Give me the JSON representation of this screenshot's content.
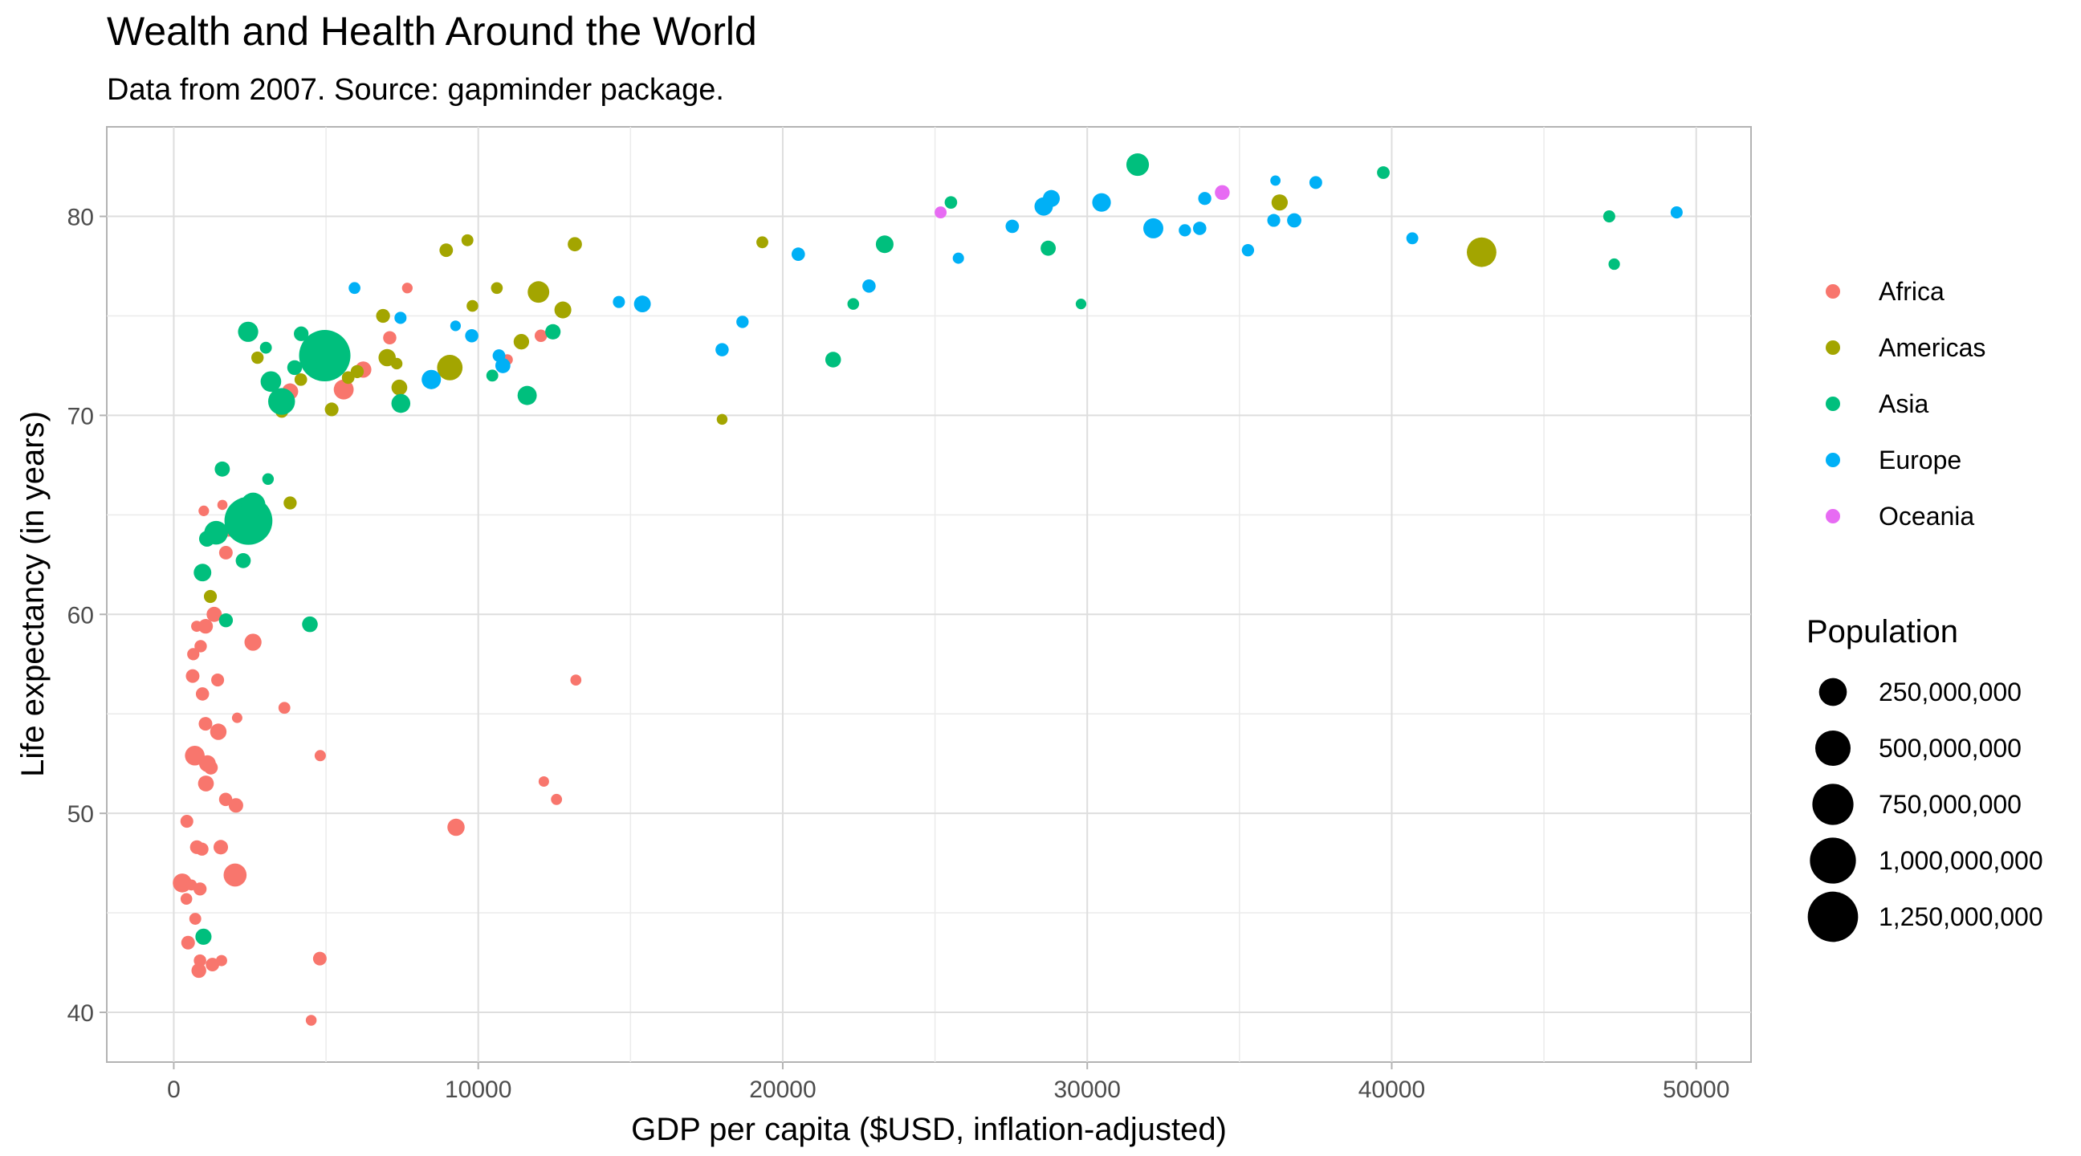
{
  "chart_data": {
    "type": "scatter",
    "title": "Wealth and Health Around the World",
    "subtitle": "Data from 2007. Source: gapminder package.",
    "xlabel": "GDP per capita ($USD, inflation-adjusted)",
    "ylabel": "Life expectancy (in years)",
    "xlim": [
      -2200,
      51800
    ],
    "ylim": [
      37.5,
      84.5
    ],
    "x_ticks": [
      0,
      10000,
      20000,
      30000,
      40000,
      50000
    ],
    "x_tick_labels": [
      "0",
      "10000",
      "20000",
      "30000",
      "40000",
      "50000"
    ],
    "y_ticks": [
      40,
      50,
      60,
      70,
      80
    ],
    "y_tick_labels": [
      "40",
      "50",
      "60",
      "70",
      "80"
    ],
    "grid": true,
    "legend_placement": "right",
    "color_legend": {
      "entries": [
        {
          "label": "Africa",
          "color": "#F8766D"
        },
        {
          "label": "Americas",
          "color": "#A3A500"
        },
        {
          "label": "Asia",
          "color": "#00BF7D"
        },
        {
          "label": "Europe",
          "color": "#00B0F6"
        },
        {
          "label": "Oceania",
          "color": "#E76BF3"
        }
      ]
    },
    "size_legend": {
      "title": "Population",
      "entries": [
        {
          "label": "250,000,000",
          "value": 250000000
        },
        {
          "label": "500,000,000",
          "value": 500000000
        },
        {
          "label": "750,000,000",
          "value": 750000000
        },
        {
          "label": "1,000,000,000",
          "value": 1000000000
        },
        {
          "label": "1,250,000,000",
          "value": 1250000000
        }
      ]
    },
    "series": [
      {
        "name": "Africa",
        "points": [
          [
            6223,
            72.3,
            33
          ],
          [
            4797,
            42.7,
            12
          ],
          [
            1441,
            56.7,
            8
          ],
          [
            12570,
            50.7,
            1.6
          ],
          [
            1217,
            52.3,
            14
          ],
          [
            430,
            49.6,
            8
          ],
          [
            2042,
            50.4,
            18
          ],
          [
            706,
            44.7,
            4
          ],
          [
            1704,
            50.7,
            10
          ],
          [
            986,
            65.2,
            0.7
          ],
          [
            278,
            46.5,
            65
          ],
          [
            3633,
            55.3,
            3.8
          ],
          [
            1544,
            48.3,
            18
          ],
          [
            2082,
            54.8,
            0.5
          ],
          [
            5581,
            71.3,
            80
          ],
          [
            12154,
            51.6,
            0.55
          ],
          [
            641,
            58.0,
            5
          ],
          [
            691,
            52.9,
            77
          ],
          [
            13206,
            56.7,
            1.45
          ],
          [
            753,
            59.4,
            1.7
          ],
          [
            1327,
            60.0,
            23
          ],
          [
            943,
            56.0,
            9.9
          ],
          [
            579,
            46.4,
            1.5
          ],
          [
            1463,
            54.1,
            35
          ],
          [
            1569,
            42.6,
            2
          ],
          [
            415,
            45.7,
            3.2
          ],
          [
            12057,
            74.0,
            6
          ],
          [
            1045,
            59.4,
            19
          ],
          [
            759,
            48.3,
            13
          ],
          [
            1042,
            54.5,
            12
          ],
          [
            1803,
            64.2,
            3.3
          ],
          [
            10957,
            72.8,
            1.25
          ],
          [
            3820,
            71.2,
            33
          ],
          [
            824,
            42.1,
            20
          ],
          [
            4811,
            52.9,
            2
          ],
          [
            620,
            56.9,
            12
          ],
          [
            2014,
            46.9,
            135
          ],
          [
            7670,
            76.4,
            0.8
          ],
          [
            863,
            46.2,
            9
          ],
          [
            1598,
            65.5,
            0.2
          ],
          [
            1712,
            63.1,
            12
          ],
          [
            862,
            42.6,
            6
          ],
          [
            926,
            48.2,
            9
          ],
          [
            9270,
            49.3,
            44
          ],
          [
            2602,
            58.6,
            42
          ],
          [
            4513,
            39.6,
            1.1
          ],
          [
            1107,
            52.5,
            38
          ],
          [
            883,
            58.4,
            5.7
          ],
          [
            7093,
            73.9,
            10
          ],
          [
            1056,
            51.5,
            29
          ],
          [
            1271,
            42.4,
            11.7
          ],
          [
            470,
            43.5,
            12.3
          ]
        ]
      },
      {
        "name": "Americas",
        "points": [
          [
            12779,
            75.3,
            40
          ],
          [
            3822,
            65.6,
            9
          ],
          [
            9066,
            72.4,
            190
          ],
          [
            36319,
            80.7,
            33
          ],
          [
            13172,
            78.6,
            16
          ],
          [
            7007,
            72.9,
            44
          ],
          [
            9645,
            78.8,
            4.1
          ],
          [
            8948,
            78.3,
            11.4
          ],
          [
            6025,
            72.2,
            9.3
          ],
          [
            6873,
            75.0,
            13.8
          ],
          [
            5728,
            71.9,
            6.9
          ],
          [
            5186,
            70.3,
            12.6
          ],
          [
            1202,
            60.9,
            8.5
          ],
          [
            3548,
            70.2,
            7.5
          ],
          [
            7321,
            72.6,
            2.8
          ],
          [
            11978,
            76.2,
            108
          ],
          [
            2749,
            72.9,
            5.7
          ],
          [
            9809,
            75.5,
            3.2
          ],
          [
            4173,
            71.8,
            6.7
          ],
          [
            7409,
            71.4,
            28.7
          ],
          [
            19329,
            78.7,
            4
          ],
          [
            18009,
            69.8,
            1.05
          ],
          [
            42952,
            78.2,
            301
          ],
          [
            10611,
            76.4,
            3.45
          ],
          [
            11416,
            73.7,
            26
          ]
        ]
      },
      {
        "name": "Asia",
        "points": [
          [
            975,
            43.8,
            32
          ],
          [
            29796,
            75.6,
            0.7
          ],
          [
            1391,
            64.1,
            150
          ],
          [
            1713,
            59.7,
            14
          ],
          [
            4959,
            73.0,
            1318
          ],
          [
            39725,
            82.2,
            6.98
          ],
          [
            2452,
            64.7,
            1110
          ],
          [
            3541,
            70.7,
            224
          ],
          [
            11606,
            71.0,
            69
          ],
          [
            4471,
            59.5,
            27.5
          ],
          [
            25523,
            80.7,
            6.4
          ],
          [
            31656,
            82.6,
            127
          ],
          [
            4519,
            72.5,
            6
          ],
          [
            1593,
            67.3,
            23
          ],
          [
            23348,
            78.6,
            49
          ],
          [
            47307,
            77.6,
            2.5
          ],
          [
            10461,
            72.0,
            3.9
          ],
          [
            12452,
            74.2,
            24.8
          ],
          [
            3096,
            66.8,
            2.87
          ],
          [
            944,
            62.1,
            47.8
          ],
          [
            1091,
            63.8,
            28.9
          ],
          [
            22316,
            75.6,
            3.2
          ],
          [
            2606,
            65.5,
            169
          ],
          [
            3190,
            71.7,
            91
          ],
          [
            21655,
            72.8,
            27.6
          ],
          [
            47143,
            80.0,
            4.55
          ],
          [
            3970,
            72.4,
            20.4
          ],
          [
            4185,
            74.1,
            19.3
          ],
          [
            28718,
            78.4,
            23.2
          ],
          [
            7458,
            70.6,
            65
          ],
          [
            2442,
            74.2,
            85
          ],
          [
            3025,
            73.4,
            4
          ],
          [
            2281,
            62.7,
            22.2
          ]
        ]
      },
      {
        "name": "Europe",
        "points": [
          [
            5937,
            76.4,
            3.6
          ],
          [
            36126,
            79.8,
            8.2
          ],
          [
            33693,
            79.4,
            10.4
          ],
          [
            7446,
            74.9,
            4.55
          ],
          [
            10681,
            73.0,
            7.3
          ],
          [
            14619,
            75.7,
            4.5
          ],
          [
            22833,
            76.5,
            10.2
          ],
          [
            35278,
            78.3,
            5.5
          ],
          [
            33207,
            79.3,
            5.2
          ],
          [
            30470,
            80.7,
            61
          ],
          [
            32170,
            79.4,
            82
          ],
          [
            27538,
            79.5,
            10.7
          ],
          [
            18008,
            73.3,
            9.96
          ],
          [
            36181,
            81.8,
            0.3
          ],
          [
            40676,
            78.9,
            4.1
          ],
          [
            28570,
            80.5,
            58
          ],
          [
            9254,
            74.5,
            0.7
          ],
          [
            36798,
            79.8,
            16.6
          ],
          [
            49357,
            80.2,
            4.6
          ],
          [
            15390,
            75.6,
            38.5
          ],
          [
            20510,
            78.1,
            10.6
          ],
          [
            10808,
            72.5,
            22.3
          ],
          [
            9787,
            74.0,
            10.2
          ],
          [
            18678,
            74.7,
            5.45
          ],
          [
            25768,
            77.9,
            2
          ],
          [
            28821,
            80.9,
            40.4
          ],
          [
            33860,
            80.9,
            9
          ],
          [
            37506,
            81.7,
            7.55
          ],
          [
            8458,
            71.8,
            71
          ]
        ]
      },
      {
        "name": "Oceania",
        "points": [
          [
            34435,
            81.2,
            20.4
          ],
          [
            25185,
            80.2,
            4.1
          ]
        ]
      }
    ]
  }
}
